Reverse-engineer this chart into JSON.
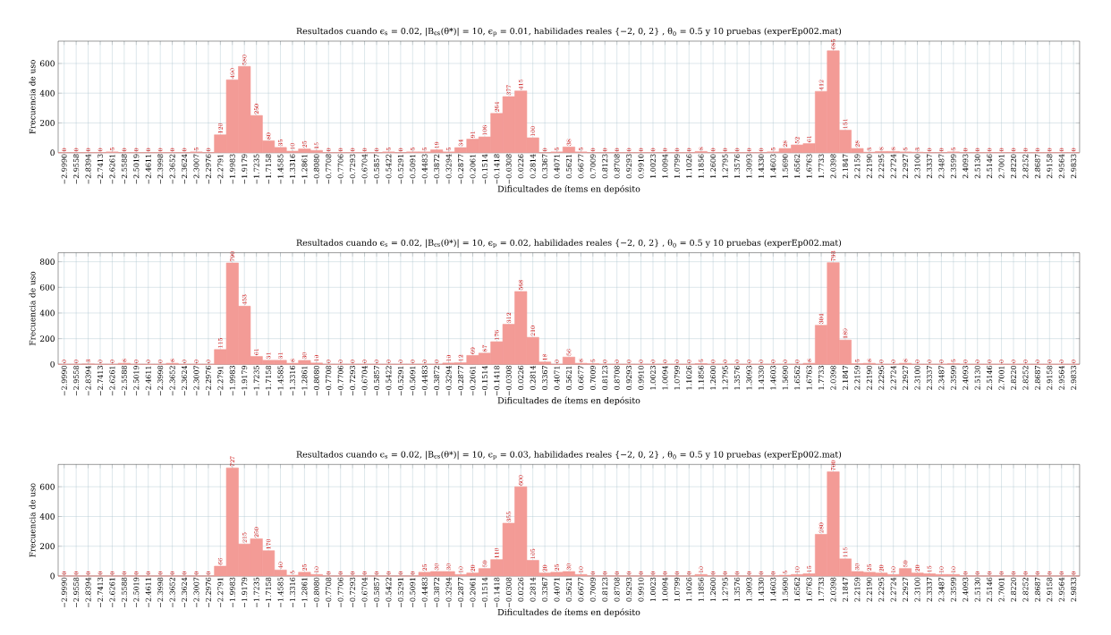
{
  "chart_data": [
    {
      "type": "bar",
      "title": "Resultados cuando ϵ$_{s}$ = 0.02, |B$_{ϵs}$(θ*)| = 10, ϵ$_{p}$ = 0.01, habilidades reales {−2, 0, 2} , θ$_{0}$ = 0.5 y 10 pruebas (experEp002.mat)",
      "xlabel": "Dificultades de ítems en depósito",
      "ylabel": "Frecuencia de uso",
      "categories": [
        "−2.9990",
        "−2.9558",
        "−2.8394",
        "−2.7413",
        "−2.6261",
        "−2.5588",
        "−2.5019",
        "−2.4611",
        "−2.3998",
        "−2.3652",
        "−2.3624",
        "−2.3007",
        "−2.2976",
        "−2.2791",
        "−1.9983",
        "−1.9179",
        "−1.7235",
        "−1.7158",
        "−1.4585",
        "−1.3316",
        "−1.2861",
        "−0.8080",
        "−0.7708",
        "−0.7706",
        "−0.7293",
        "−0.6704",
        "−0.5857",
        "−0.5422",
        "−0.5291",
        "−0.5091",
        "−0.4483",
        "−0.3872",
        "−0.3294",
        "−0.2877",
        "−0.2061",
        "−0.1514",
        "−0.1418",
        "−0.0308",
        "0.0226",
        "0.2814",
        "0.3367",
        "0.4071",
        "0.5621",
        "0.6677",
        "0.7009",
        "0.8123",
        "0.8708",
        "0.9293",
        "0.9910",
        "1.0023",
        "1.0094",
        "1.0799",
        "1.1026",
        "1.1856",
        "1.2600",
        "1.2795",
        "1.3576",
        "1.3093",
        "1.4330",
        "1.4603",
        "1.5690",
        "1.6562",
        "1.6763",
        "1.7733",
        "2.0398",
        "2.1847",
        "2.2159",
        "2.2190",
        "2.2295",
        "2.2724",
        "2.2927",
        "2.3100",
        "2.3337",
        "2.3487",
        "2.3599",
        "2.4093",
        "2.5130",
        "2.5146",
        "2.7001",
        "2.8220",
        "2.8252",
        "2.8687",
        "2.9158",
        "2.9564",
        "2.9833"
      ],
      "values": [
        0,
        0,
        0,
        0,
        5,
        0,
        0,
        0,
        0,
        0,
        0,
        5,
        0,
        120,
        490,
        580,
        250,
        80,
        35,
        10,
        25,
        15,
        0,
        0,
        0,
        0,
        0,
        5,
        0,
        5,
        5,
        19,
        5,
        34,
        91,
        106,
        264,
        377,
        415,
        100,
        0,
        5,
        38,
        5,
        0,
        0,
        0,
        0,
        0,
        0,
        0,
        0,
        0,
        8,
        0,
        0,
        0,
        0,
        0,
        5,
        28,
        52,
        61,
        412,
        685,
        151,
        28,
        3,
        8,
        8,
        5,
        3,
        0,
        0,
        5,
        0,
        0,
        0,
        0,
        0,
        0,
        0,
        0,
        0,
        0
      ],
      "color": "#f39b96",
      "ylim": [
        0,
        750
      ],
      "yticks": [
        0,
        200,
        400,
        600
      ],
      "grid": true,
      "data_labels": true
    },
    {
      "type": "bar",
      "title": "Resultados cuando ϵ$_{s}$ = 0.02, |B$_{ϵs}$(θ*)| = 10, ϵ$_{p}$ = 0.02, habilidades reales {−2, 0, 2} , θ$_{0}$ = 0.5 y 10 pruebas (experEp002.mat)",
      "xlabel": "Dificultades de ítems en depósito",
      "ylabel": "Frecuencia de uso",
      "categories": [
        "−2.9990",
        "−2.9558",
        "−2.8394",
        "−2.7413",
        "−2.6261",
        "−2.5588",
        "−2.5019",
        "−2.4611",
        "−2.3998",
        "−2.3652",
        "−2.3624",
        "−2.3007",
        "−2.2976",
        "−2.2791",
        "−1.9983",
        "−1.9179",
        "−1.7235",
        "−1.7158",
        "−1.4585",
        "−1.3316",
        "−1.2861",
        "−0.8080",
        "−0.7708",
        "−0.7706",
        "−0.7293",
        "−0.6704",
        "−0.5857",
        "−0.5422",
        "−0.5291",
        "−0.5091",
        "−0.4483",
        "−0.3872",
        "−0.3294",
        "−0.2877",
        "−0.2061",
        "−0.1514",
        "−0.1418",
        "−0.0308",
        "0.0226",
        "0.2814",
        "0.3367",
        "0.4071",
        "0.5621",
        "0.6677",
        "0.7009",
        "0.8123",
        "0.8708",
        "0.9293",
        "0.9910",
        "1.0023",
        "1.0094",
        "1.0799",
        "1.1026",
        "1.1856",
        "1.2600",
        "1.2795",
        "1.3576",
        "1.3093",
        "1.4330",
        "1.4603",
        "1.5690",
        "1.6562",
        "1.6763",
        "1.7733",
        "2.0398",
        "2.1847",
        "2.2159",
        "2.2190",
        "2.2295",
        "2.2724",
        "2.2927",
        "2.3100",
        "2.3337",
        "2.3487",
        "2.3599",
        "2.4093",
        "2.5130",
        "2.5146",
        "2.7001",
        "2.8220",
        "2.8252",
        "2.8687",
        "2.9158",
        "2.9564",
        "2.9833"
      ],
      "values": [
        0,
        0,
        3,
        0,
        0,
        8,
        0,
        0,
        0,
        8,
        0,
        0,
        0,
        115,
        790,
        453,
        61,
        31,
        31,
        8,
        30,
        10,
        0,
        0,
        0,
        0,
        0,
        0,
        0,
        0,
        0,
        0,
        10,
        12,
        69,
        87,
        176,
        312,
        568,
        210,
        18,
        0,
        56,
        8,
        5,
        0,
        0,
        0,
        0,
        0,
        0,
        0,
        0,
        5,
        0,
        0,
        0,
        0,
        0,
        0,
        0,
        0,
        8,
        304,
        793,
        189,
        5,
        8,
        0,
        0,
        8,
        0,
        0,
        0,
        5,
        0,
        0,
        0,
        0,
        0,
        0,
        0,
        0,
        0,
        0
      ],
      "color": "#f39b96",
      "ylim": [
        0,
        870
      ],
      "yticks": [
        0,
        200,
        400,
        600,
        800
      ],
      "grid": true,
      "data_labels": true
    },
    {
      "type": "bar",
      "title": "Resultados cuando ϵ$_{s}$ = 0.02, |B$_{ϵs}$(θ*)| = 10, ϵ$_{p}$ = 0.03, habilidades reales {−2, 0, 2} , θ$_{0}$ = 0.5 y 10 pruebas (experEp002.mat)",
      "xlabel": "Dificultades de ítems en depósito",
      "ylabel": "Frecuencia de uso",
      "categories": [
        "−2.9990",
        "−2.9558",
        "−2.8394",
        "−2.7413",
        "−2.6261",
        "−2.5588",
        "−2.5019",
        "−2.4611",
        "−2.3998",
        "−2.3652",
        "−2.3624",
        "−2.3007",
        "−2.2976",
        "−2.2791",
        "−1.9983",
        "−1.9179",
        "−1.7235",
        "−1.7158",
        "−1.4585",
        "−1.3316",
        "−1.2861",
        "−0.8080",
        "−0.7708",
        "−0.7706",
        "−0.7293",
        "−0.6704",
        "−0.5857",
        "−0.5422",
        "−0.5291",
        "−0.5091",
        "−0.4483",
        "−0.3872",
        "−0.3294",
        "−0.2877",
        "−0.2061",
        "−0.1514",
        "−0.1418",
        "−0.0308",
        "0.0226",
        "0.2814",
        "0.3367",
        "0.4071",
        "0.5621",
        "0.6677",
        "0.7009",
        "0.8123",
        "0.8708",
        "0.9293",
        "0.9910",
        "1.0023",
        "1.0094",
        "1.0799",
        "1.1026",
        "1.1856",
        "1.2600",
        "1.2795",
        "1.3576",
        "1.3093",
        "1.4330",
        "1.4603",
        "1.5690",
        "1.6562",
        "1.6763",
        "1.7733",
        "2.0398",
        "2.1847",
        "2.2159",
        "2.2190",
        "2.2295",
        "2.2724",
        "2.2927",
        "2.3100",
        "2.3337",
        "2.3487",
        "2.3599",
        "2.4093",
        "2.5130",
        "2.5146",
        "2.7001",
        "2.8220",
        "2.8252",
        "2.8687",
        "2.9158",
        "2.9564",
        "2.9833"
      ],
      "values": [
        0,
        0,
        0,
        0,
        0,
        0,
        0,
        0,
        0,
        0,
        0,
        0,
        0,
        66,
        727,
        215,
        250,
        170,
        40,
        5,
        25,
        10,
        0,
        0,
        0,
        0,
        0,
        0,
        0,
        0,
        25,
        30,
        30,
        10,
        20,
        50,
        110,
        355,
        600,
        105,
        20,
        25,
        30,
        10,
        0,
        0,
        0,
        0,
        0,
        0,
        0,
        0,
        0,
        10,
        0,
        0,
        0,
        0,
        0,
        0,
        5,
        10,
        15,
        280,
        700,
        115,
        30,
        25,
        20,
        10,
        50,
        20,
        15,
        10,
        10,
        0,
        0,
        0,
        0,
        0,
        0,
        0,
        0,
        0,
        0
      ],
      "color": "#f39b96",
      "ylim": [
        0,
        750
      ],
      "yticks": [
        0,
        200,
        400,
        600
      ],
      "grid": true,
      "data_labels": true
    }
  ]
}
